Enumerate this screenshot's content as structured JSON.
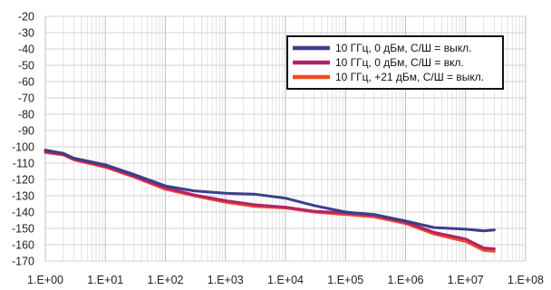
{
  "chart_data": {
    "type": "line",
    "title": "",
    "xlabel": "",
    "ylabel": "",
    "x_scale": "log",
    "xlim": [
      1,
      100000000
    ],
    "ylim": [
      -170,
      -20
    ],
    "grid": true,
    "legend_position": "top-right",
    "x_tick_labels": [
      "1.E+00",
      "1.E+01",
      "1.E+02",
      "1.E+03",
      "1.E+04",
      "1.E+05",
      "1.E+06",
      "1.E+07",
      "1.E+08"
    ],
    "y_tick_labels": [
      "-20",
      "-30",
      "-40",
      "-50",
      "-60",
      "-70",
      "-80",
      "-90",
      "-100",
      "-110",
      "-120",
      "-130",
      "-140",
      "-150",
      "-160",
      "-170"
    ],
    "x": [
      1,
      2,
      3,
      10,
      30,
      100,
      300,
      1000,
      3000,
      10000,
      30000,
      100000,
      300000,
      1000000,
      3000000,
      10000000,
      20000000,
      30000000
    ],
    "series": [
      {
        "name": "10 ГГц, 0 дБм, С/Ш = выкл.",
        "color": "#3a3e8c",
        "values": [
          -102,
          -104,
          -107,
          -111,
          -117,
          -124,
          -127,
          -128.5,
          -129,
          -131.5,
          -136,
          -140,
          -141.5,
          -145.5,
          -149.5,
          -150.5,
          -151.5,
          -151
        ]
      },
      {
        "name": "10 ГГц, 0 дБм, С/Ш = вкл.",
        "color": "#b2226a",
        "values": [
          -103,
          -104.5,
          -107.5,
          -112,
          -118,
          -125,
          -129.5,
          -133,
          -135.5,
          -137,
          -139.5,
          -140.5,
          -142,
          -146,
          -152.5,
          -156.5,
          -162,
          -162.5
        ]
      },
      {
        "name": "10 ГГц, +21 дБм, С/Ш  = выкл.",
        "color": "#f04a2a",
        "values": [
          -103.5,
          -105,
          -108,
          -112.5,
          -118.5,
          -126,
          -130,
          -134,
          -136.5,
          -137.5,
          -140,
          -141.5,
          -143,
          -147,
          -153.5,
          -158,
          -163.5,
          -164
        ]
      }
    ]
  }
}
